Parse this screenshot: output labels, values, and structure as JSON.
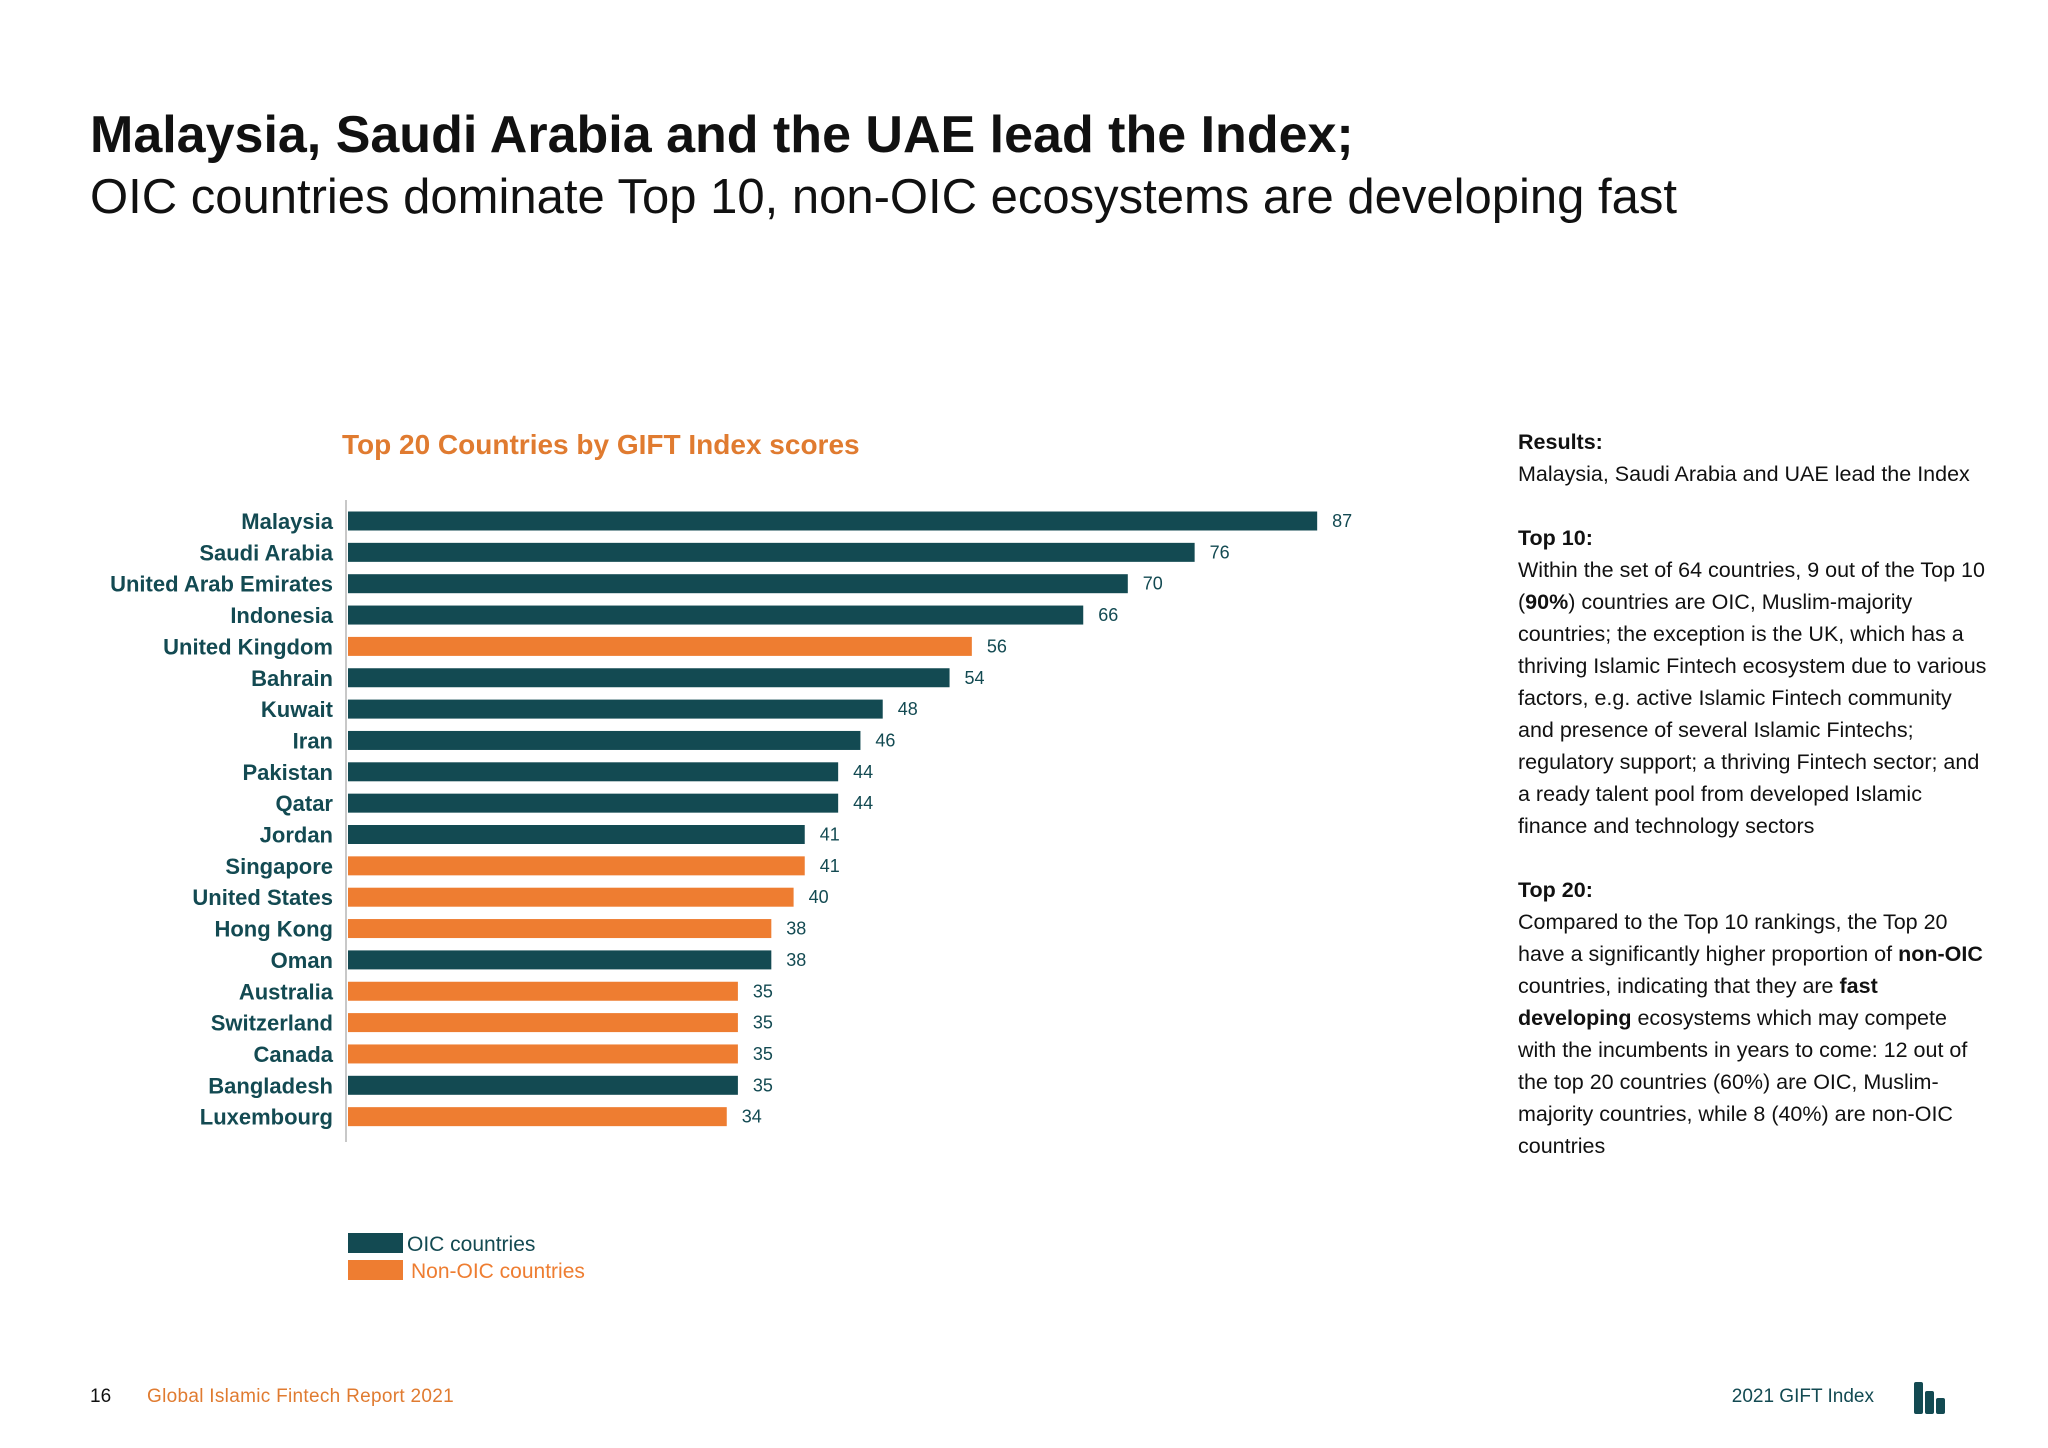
{
  "page": {
    "headline": "Malaysia, Saudi Arabia and the UAE lead the Index;",
    "subheadline": "OIC countries dominate Top 10, non-OIC ecosystems are developing fast"
  },
  "colors": {
    "oic": "#134a52",
    "non_oic": "#ee7d31",
    "accent_title": "#e07b30"
  },
  "chart_data": {
    "type": "bar",
    "orientation": "horizontal",
    "title": "Top 20 Countries by GIFT Index scores",
    "categories": [
      "Malaysia",
      "Saudi Arabia",
      "United Arab Emirates",
      "Indonesia",
      "United Kingdom",
      "Bahrain",
      "Kuwait",
      "Iran",
      "Pakistan",
      "Qatar",
      "Jordan",
      "Singapore",
      "United States",
      "Hong Kong",
      "Oman",
      "Australia",
      "Switzerland",
      "Canada",
      "Bangladesh",
      "Luxembourg"
    ],
    "values": [
      87,
      76,
      70,
      66,
      56,
      54,
      48,
      46,
      44,
      44,
      41,
      41,
      40,
      38,
      38,
      35,
      35,
      35,
      35,
      34
    ],
    "groups": [
      "oic",
      "oic",
      "oic",
      "oic",
      "non_oic",
      "oic",
      "oic",
      "oic",
      "oic",
      "oic",
      "oic",
      "non_oic",
      "non_oic",
      "non_oic",
      "oic",
      "non_oic",
      "non_oic",
      "non_oic",
      "oic",
      "non_oic"
    ],
    "legend": [
      {
        "key": "oic",
        "label": "OIC countries"
      },
      {
        "key": "non_oic",
        "label": "Non-OIC countries"
      }
    ],
    "legend_position": "bottom-left",
    "xlim": [
      0,
      100
    ],
    "grid": false
  },
  "sidebar": {
    "results_heading": "Results:",
    "results_text": "Malaysia, Saudi Arabia and UAE lead the Index",
    "top10_heading": "Top 10:",
    "top10_text_1": "Within the set of 64 countries, 9 out of the Top 10 (",
    "top10_bold": "90%",
    "top10_text_2": ") countries are OIC, Muslim-majority countries; the exception is the UK, which has a thriving Islamic Fintech ecosystem due to various factors, e.g. active Islamic Fintech community and presence of several Islamic Fintechs; regulatory support; a thriving Fintech sector; and a ready talent pool from developed Islamic finance and technology sectors",
    "top20_heading": "Top 20:",
    "top20_text_1": "Compared to the Top 10 rankings, the Top 20 have a significantly higher proportion of ",
    "top20_bold_1": "non-OIC",
    "top20_text_2": " countries, indicating that they are ",
    "top20_bold_2": "fast developing",
    "top20_text_3": " ecosystems which may compete with the incumbents in years to come: 12 out of the top 20 countries (60%) are OIC, Muslim-majority countries, while 8 (40%) are non-OIC countries"
  },
  "footer": {
    "page_number": "16",
    "report_name": "Global Islamic Fintech Report 2021",
    "index_label": "2021 GIFT Index",
    "logo_icon": "gift-index-bars-icon"
  }
}
